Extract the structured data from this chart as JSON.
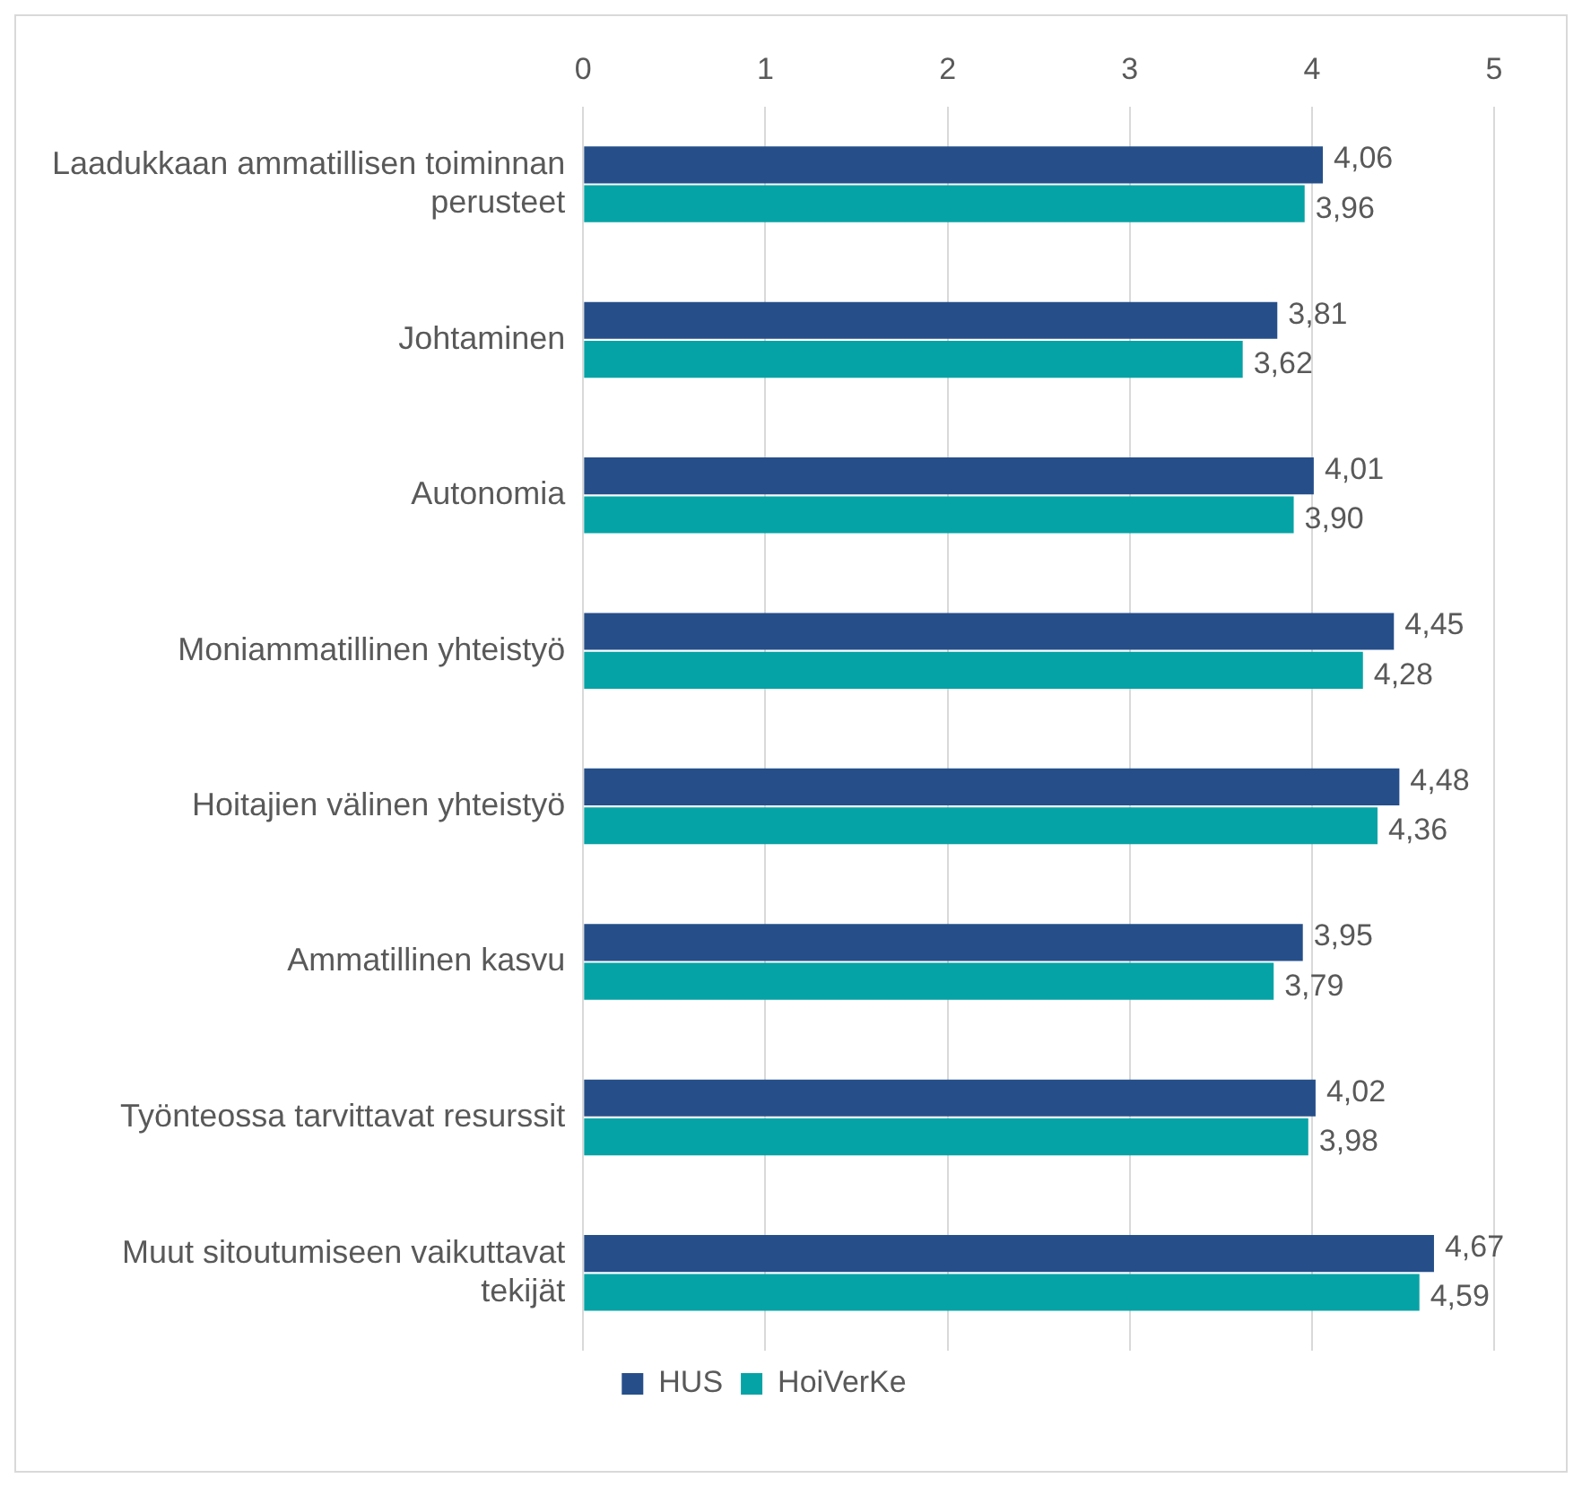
{
  "chart_data": {
    "type": "bar",
    "orientation": "horizontal",
    "categories": [
      "Laadukkaan ammatillisen toiminnan perusteet",
      "Johtaminen",
      "Autonomia",
      "Moniammatillinen yhteistyö",
      "Hoitajien välinen yhteistyö",
      "Ammatillinen kasvu",
      "Työnteossa tarvittavat resurssit",
      "Muut sitoutumiseen vaikuttavat tekijät"
    ],
    "series": [
      {
        "name": "HUS",
        "color": "#264f8a",
        "values": [
          4.06,
          3.81,
          4.01,
          4.45,
          4.48,
          3.95,
          4.02,
          4.67
        ],
        "value_labels": [
          "4,06",
          "3,81",
          "4,01",
          "4,45",
          "4,48",
          "3,95",
          "4,02",
          "4,67"
        ]
      },
      {
        "name": "HoiVerKe",
        "color": "#06a3a6",
        "values": [
          3.96,
          3.62,
          3.9,
          4.28,
          4.36,
          3.79,
          3.98,
          4.59
        ],
        "value_labels": [
          "3,96",
          "3,62",
          "3,90",
          "4,28",
          "4,36",
          "3,79",
          "3,98",
          "4,59"
        ]
      }
    ],
    "xlim": [
      0,
      5
    ],
    "xticks": [
      0,
      1,
      2,
      3,
      4,
      5
    ],
    "grid": "x",
    "legend": "bottom"
  }
}
